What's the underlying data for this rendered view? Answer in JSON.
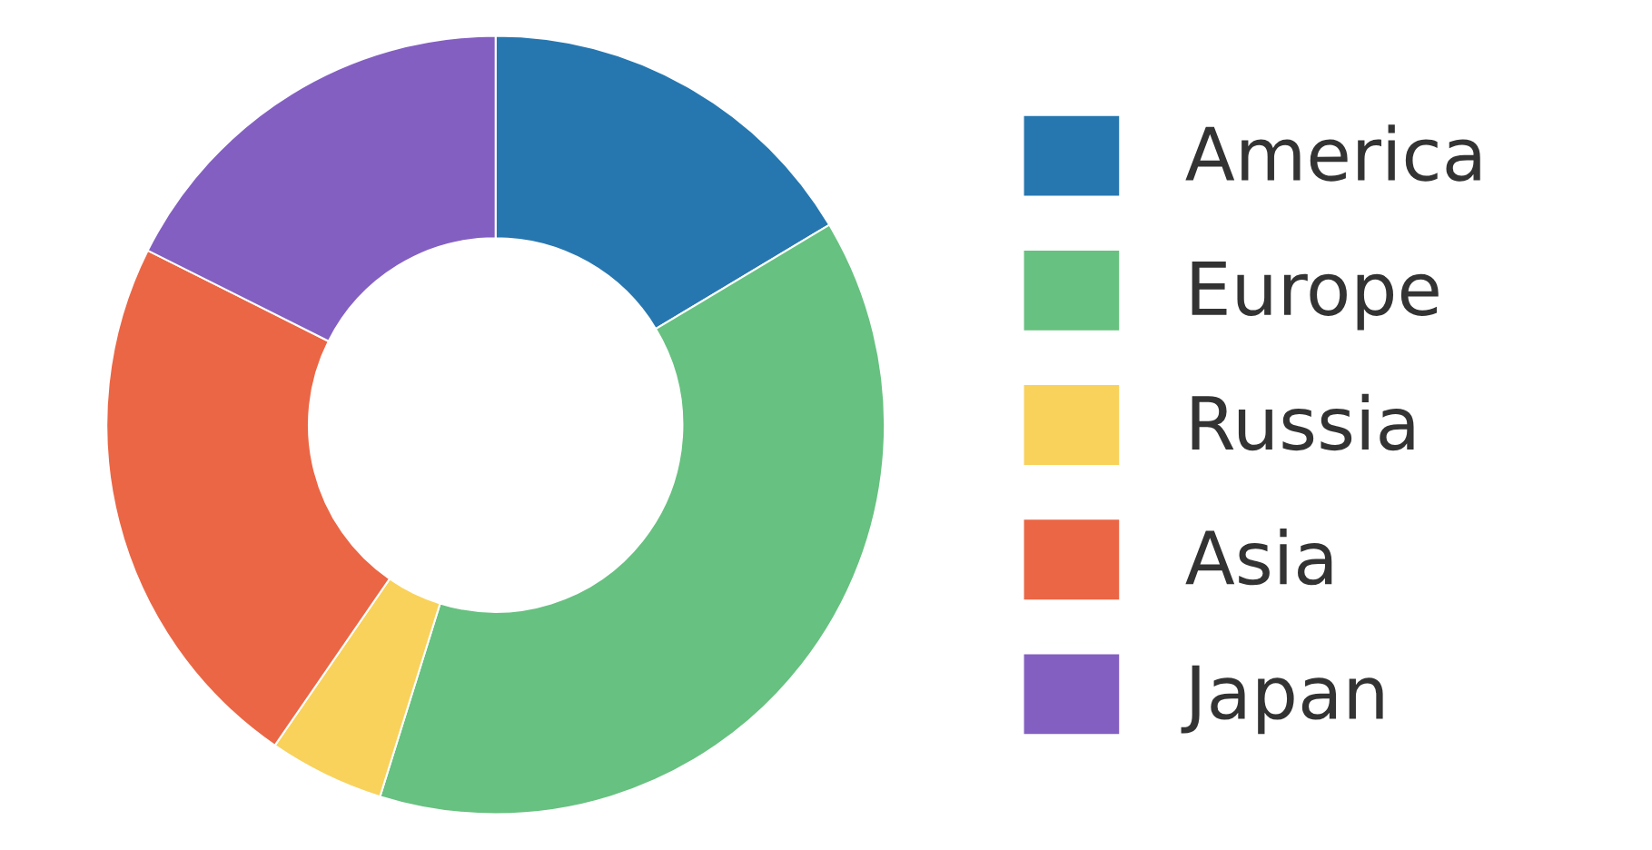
{
  "chart_data": {
    "type": "donut",
    "categories": [
      "America",
      "Europe",
      "Russia",
      "Asia",
      "Japan"
    ],
    "values": [
      16.4,
      38.4,
      4.8,
      22.8,
      17.6
    ],
    "colors": [
      "#2677b0",
      "#67c180",
      "#f9d25b",
      "#eb6645",
      "#835fc2"
    ],
    "legend": "right"
  }
}
